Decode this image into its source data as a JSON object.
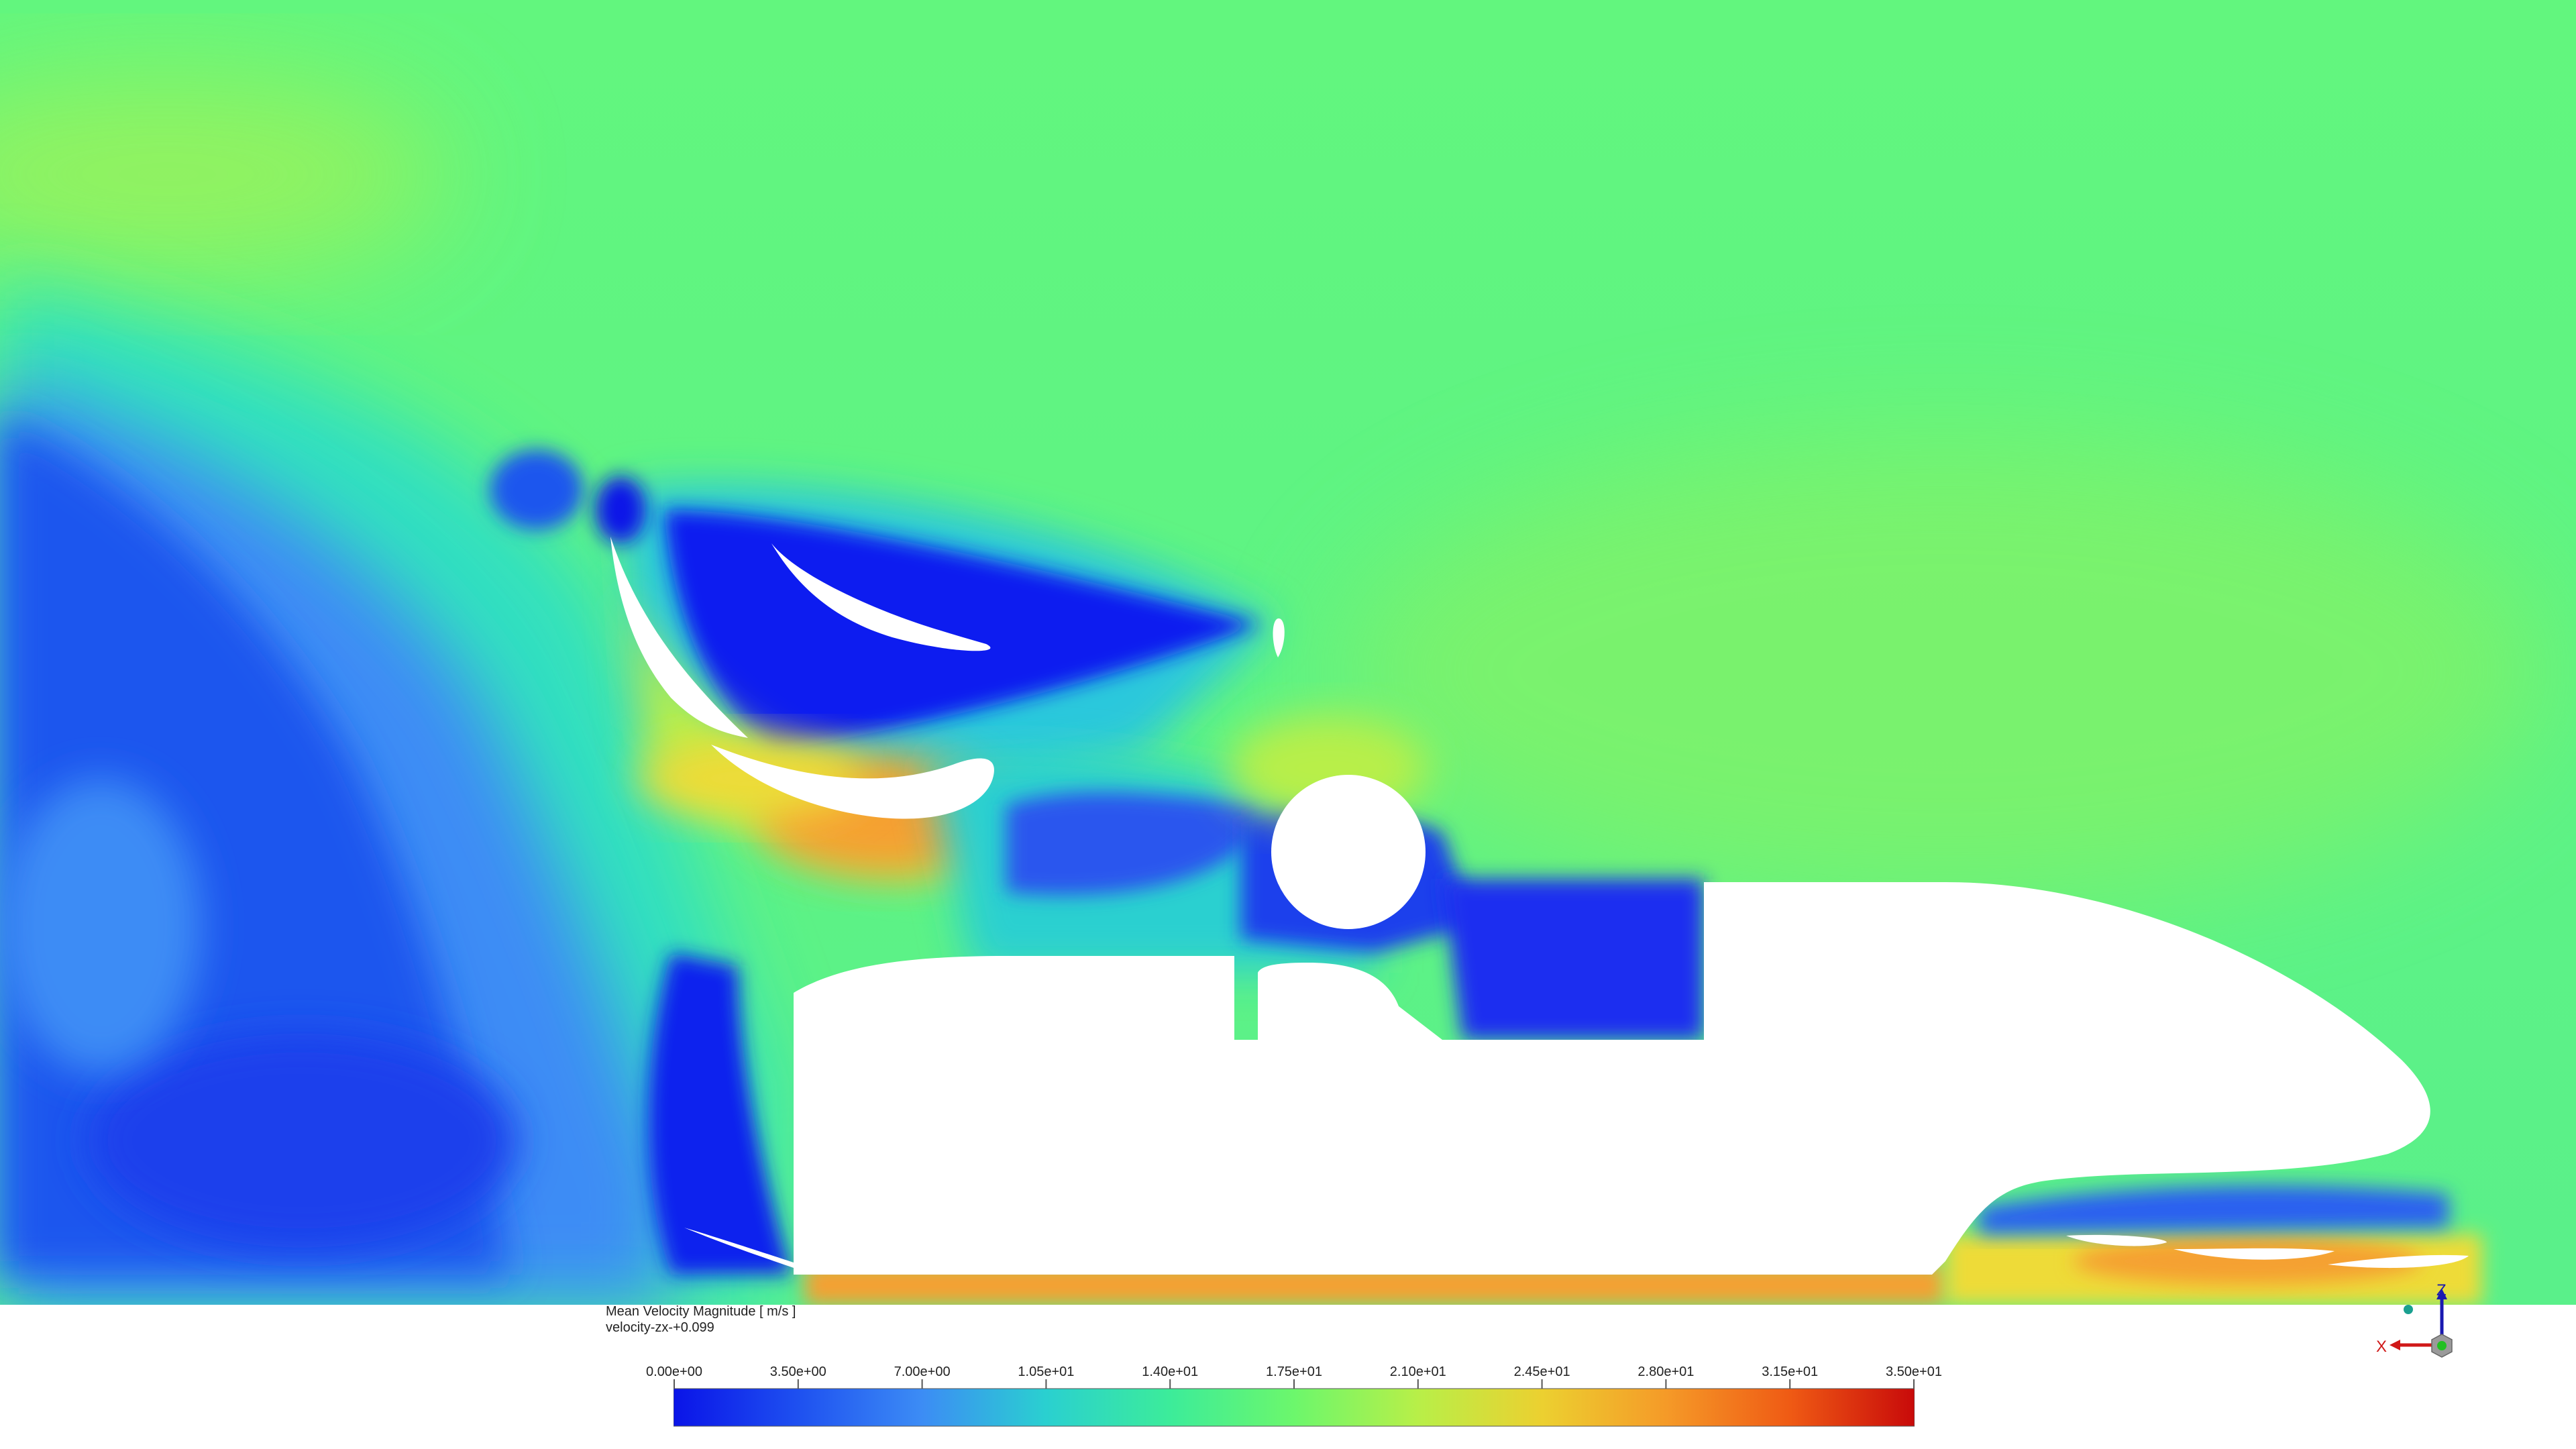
{
  "contour": {
    "quantity": "Mean Velocity Magnitude [ m/s ]",
    "plane": "velocity-zx-+0.099"
  },
  "colorbar": {
    "ticks": [
      "0.00e+00",
      "3.50e+00",
      "7.00e+00",
      "1.05e+01",
      "1.40e+01",
      "1.75e+01",
      "2.10e+01",
      "2.45e+01",
      "2.80e+01",
      "3.15e+01",
      "3.50e+01"
    ],
    "min": 0,
    "max": 35,
    "colormap": [
      "#0a14e8",
      "#1e50f0",
      "#3c8cf5",
      "#2ad0d0",
      "#3cec9a",
      "#6cf76c",
      "#b8ef48",
      "#ecd030",
      "#f59a28",
      "#ef5a14",
      "#c80a0a"
    ]
  },
  "triad": {
    "axis_z": "Z",
    "axis_x": "X",
    "axis_z_color": "#1a1ab0",
    "axis_x_color": "#d01818"
  }
}
